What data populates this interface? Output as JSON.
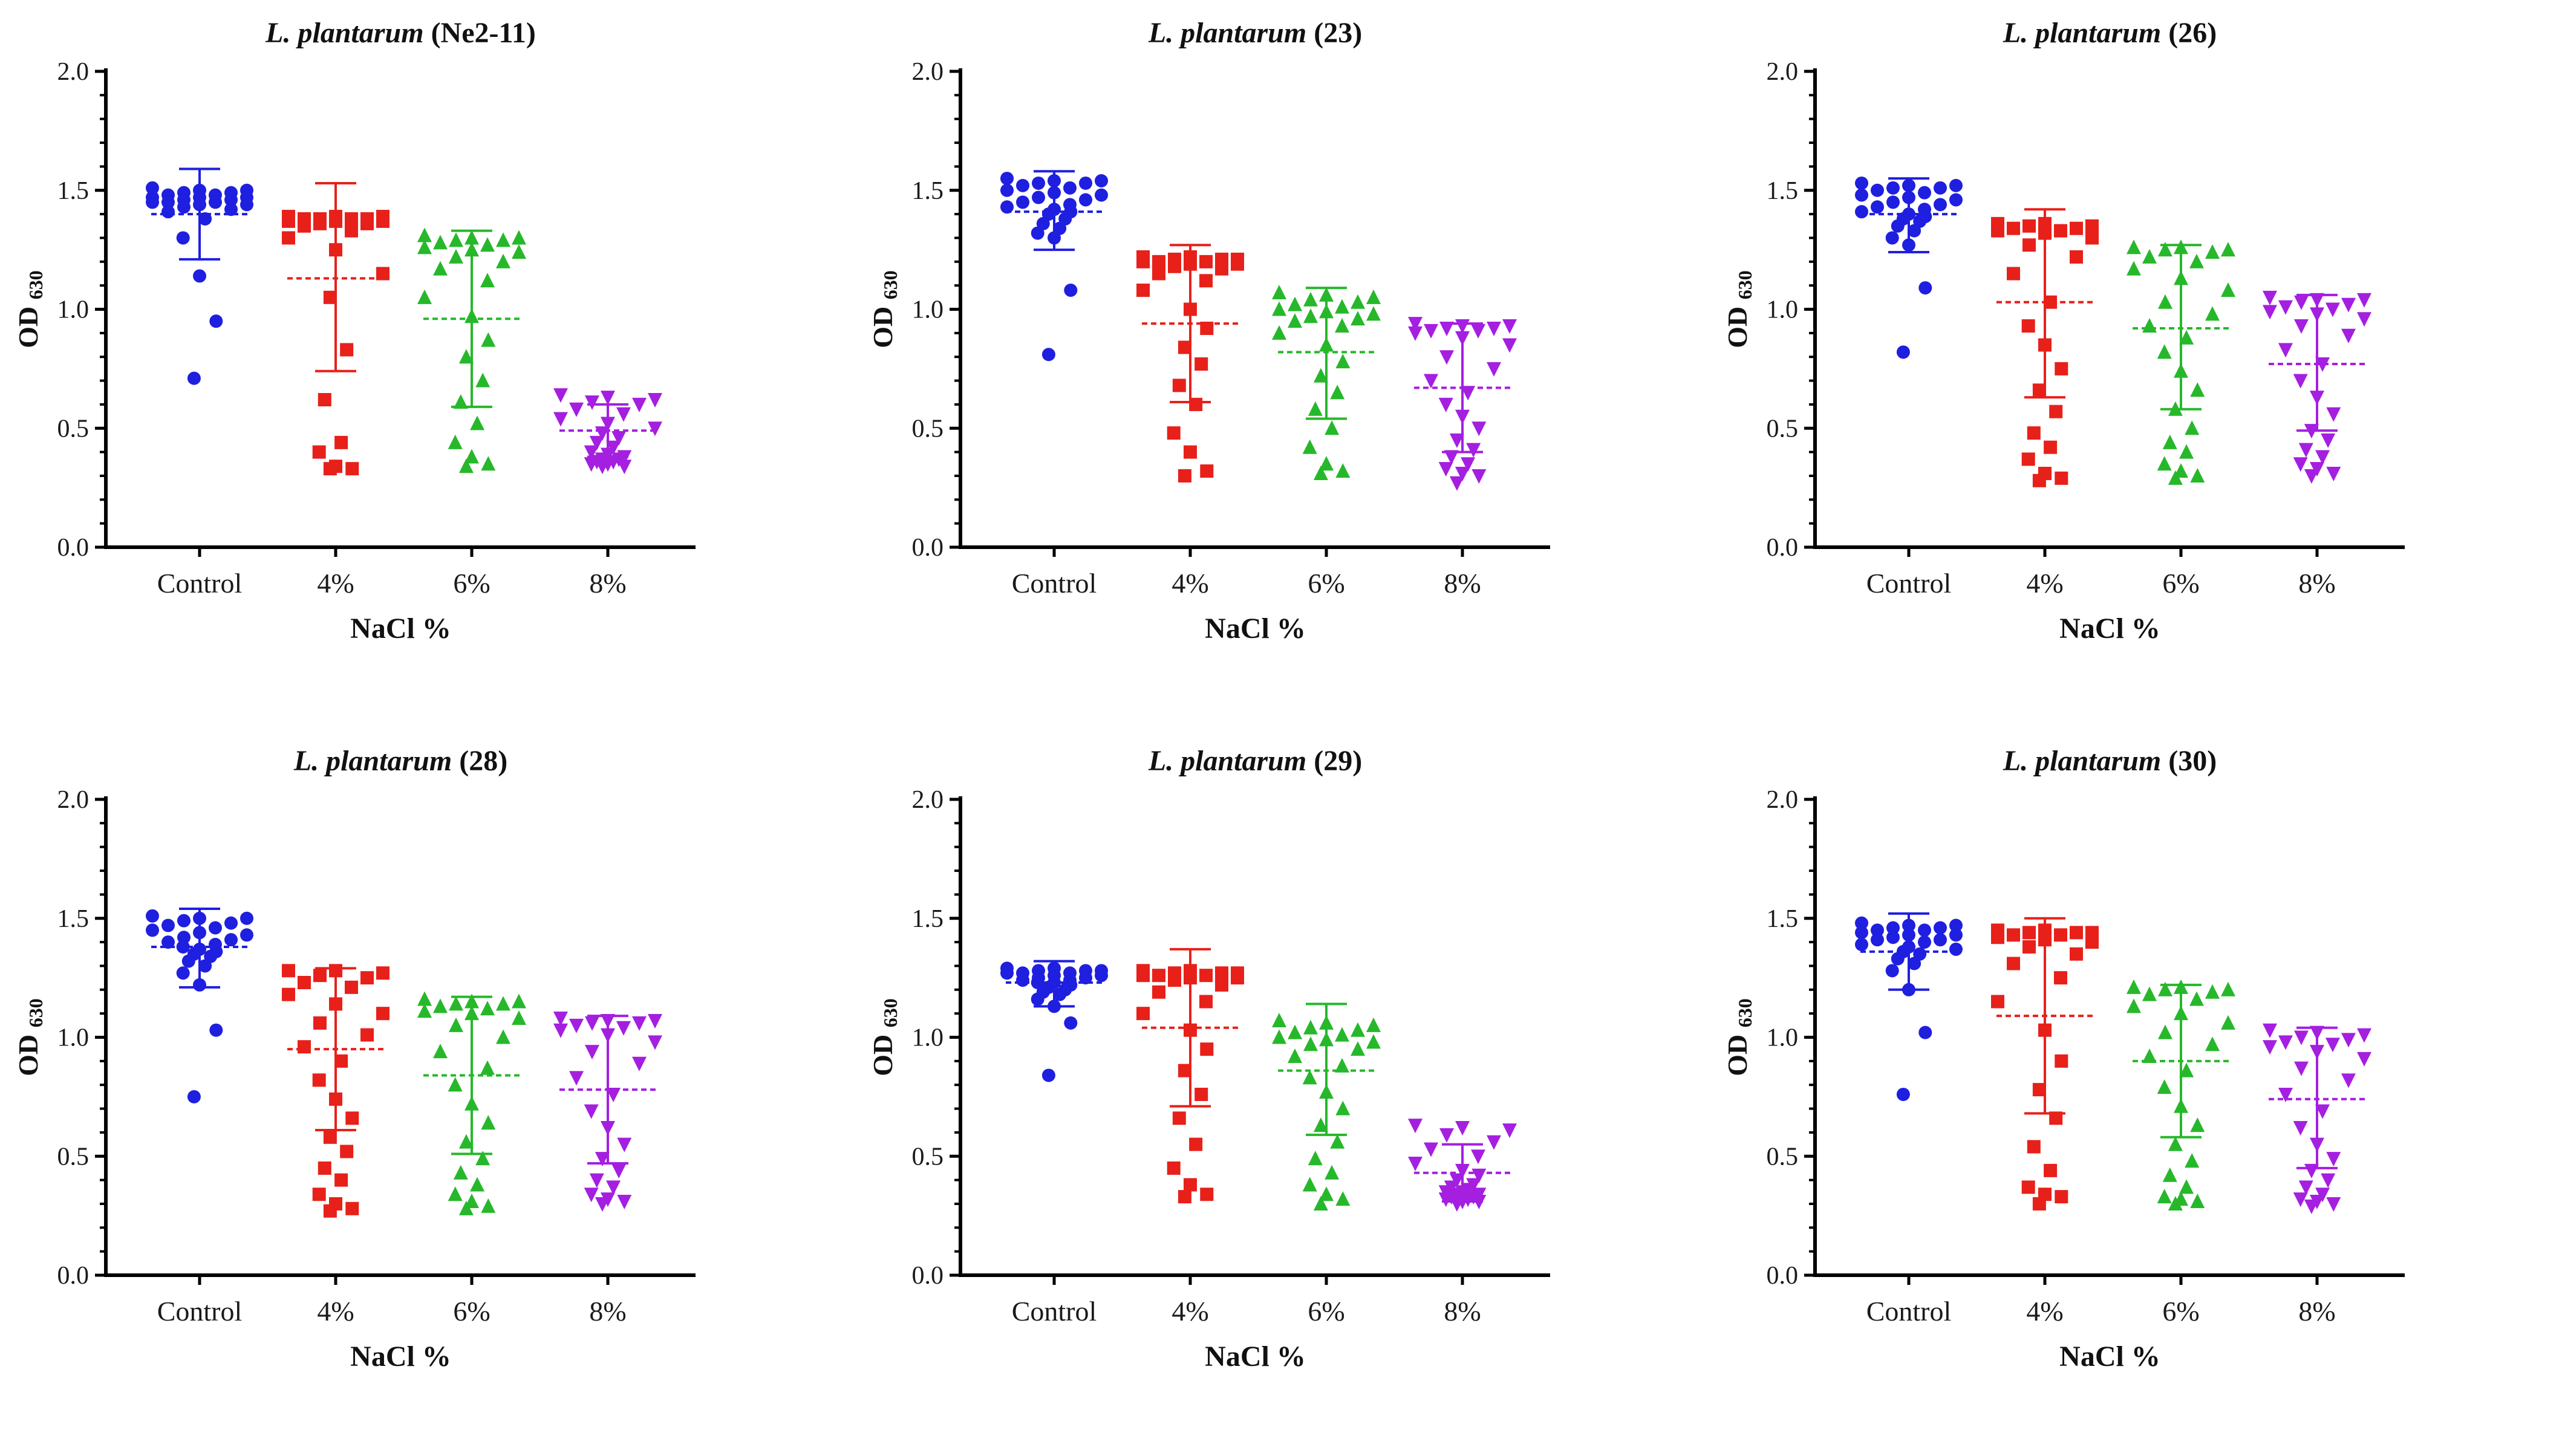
{
  "chart_data": [
    {
      "type": "scatter",
      "title_species": "L. plantarum",
      "title_strain": "(Ne2-11)",
      "xlabel": "NaCl %",
      "ylabel_main": "OD",
      "ylabel_sub": "630",
      "ylim": [
        0.0,
        2.0
      ],
      "yticks": [
        "0.0",
        "0.5",
        "1.0",
        "1.5",
        "2.0"
      ],
      "ytick_values": [
        0,
        0.5,
        1.0,
        1.5,
        2.0
      ],
      "categories": [
        "Control",
        "4%",
        "6%",
        "8%"
      ],
      "series": [
        {
          "name": "Control",
          "color": "#1f1fe0",
          "marker": "circle",
          "mean": 1.4,
          "sd_low": 1.21,
          "sd_high": 1.59,
          "points": [
            1.51,
            1.5,
            1.5,
            1.49,
            1.49,
            1.48,
            1.48,
            1.47,
            1.47,
            1.47,
            1.46,
            1.46,
            1.45,
            1.45,
            1.45,
            1.44,
            1.44,
            1.43,
            1.42,
            1.41,
            1.38,
            1.3,
            1.14,
            0.95,
            0.71
          ]
        },
        {
          "name": "4%",
          "color": "#e8201a",
          "marker": "square",
          "mean": 1.13,
          "sd_low": 0.74,
          "sd_high": 1.53,
          "points": [
            1.39,
            1.39,
            1.39,
            1.38,
            1.38,
            1.38,
            1.38,
            1.37,
            1.37,
            1.37,
            1.36,
            1.36,
            1.35,
            1.33,
            1.3,
            1.25,
            1.15,
            1.05,
            0.83,
            0.62,
            0.44,
            0.4,
            0.34,
            0.33,
            0.33
          ]
        },
        {
          "name": "6%",
          "color": "#26b82a",
          "marker": "triangle-up",
          "mean": 0.96,
          "sd_low": 0.59,
          "sd_high": 1.33,
          "points": [
            1.31,
            1.3,
            1.3,
            1.29,
            1.29,
            1.28,
            1.27,
            1.26,
            1.25,
            1.24,
            1.22,
            1.2,
            1.17,
            1.12,
            1.05,
            0.97,
            0.87,
            0.8,
            0.7,
            0.61,
            0.52,
            0.44,
            0.38,
            0.35,
            0.34
          ]
        },
        {
          "name": "8%",
          "color": "#a41fe0",
          "marker": "triangle-down",
          "mean": 0.49,
          "sd_low": 0.38,
          "sd_high": 0.6,
          "points": [
            0.64,
            0.63,
            0.62,
            0.61,
            0.6,
            0.58,
            0.56,
            0.54,
            0.52,
            0.5,
            0.48,
            0.46,
            0.44,
            0.42,
            0.4,
            0.39,
            0.38,
            0.37,
            0.37,
            0.36,
            0.36,
            0.35,
            0.35,
            0.34,
            0.34
          ]
        }
      ]
    },
    {
      "type": "scatter",
      "title_species": "L. plantarum",
      "title_strain": "(23)",
      "xlabel": "NaCl %",
      "ylabel_main": "OD",
      "ylabel_sub": "630",
      "ylim": [
        0.0,
        2.0
      ],
      "yticks": [
        "0.0",
        "0.5",
        "1.0",
        "1.5",
        "2.0"
      ],
      "ytick_values": [
        0,
        0.5,
        1.0,
        1.5,
        2.0
      ],
      "categories": [
        "Control",
        "4%",
        "6%",
        "8%"
      ],
      "series": [
        {
          "name": "Control",
          "color": "#1f1fe0",
          "marker": "circle",
          "mean": 1.41,
          "sd_low": 1.25,
          "sd_high": 1.58,
          "points": [
            1.55,
            1.54,
            1.54,
            1.53,
            1.53,
            1.52,
            1.51,
            1.5,
            1.49,
            1.48,
            1.47,
            1.46,
            1.45,
            1.44,
            1.43,
            1.42,
            1.41,
            1.4,
            1.38,
            1.36,
            1.34,
            1.32,
            1.3,
            1.08,
            0.81
          ]
        },
        {
          "name": "4%",
          "color": "#e8201a",
          "marker": "square",
          "mean": 0.94,
          "sd_low": 0.61,
          "sd_high": 1.27,
          "points": [
            1.22,
            1.22,
            1.21,
            1.21,
            1.21,
            1.2,
            1.2,
            1.2,
            1.19,
            1.19,
            1.18,
            1.17,
            1.15,
            1.12,
            1.08,
            1.0,
            0.92,
            0.84,
            0.77,
            0.68,
            0.6,
            0.48,
            0.4,
            0.32,
            0.3
          ]
        },
        {
          "name": "6%",
          "color": "#26b82a",
          "marker": "triangle-up",
          "mean": 0.82,
          "sd_low": 0.54,
          "sd_high": 1.09,
          "points": [
            1.07,
            1.06,
            1.05,
            1.04,
            1.03,
            1.02,
            1.01,
            1.0,
            0.99,
            0.98,
            0.97,
            0.96,
            0.95,
            0.93,
            0.9,
            0.85,
            0.78,
            0.72,
            0.65,
            0.58,
            0.5,
            0.42,
            0.35,
            0.32,
            0.31
          ]
        },
        {
          "name": "8%",
          "color": "#a41fe0",
          "marker": "triangle-down",
          "mean": 0.67,
          "sd_low": 0.4,
          "sd_high": 0.94,
          "points": [
            0.94,
            0.93,
            0.93,
            0.92,
            0.92,
            0.91,
            0.91,
            0.9,
            0.88,
            0.85,
            0.8,
            0.75,
            0.7,
            0.65,
            0.6,
            0.55,
            0.5,
            0.45,
            0.41,
            0.38,
            0.35,
            0.33,
            0.31,
            0.3,
            0.27
          ]
        }
      ]
    },
    {
      "type": "scatter",
      "title_species": "L. plantarum",
      "title_strain": "(26)",
      "xlabel": "NaCl %",
      "ylabel_main": "OD",
      "ylabel_sub": "630",
      "ylim": [
        0.0,
        2.0
      ],
      "yticks": [
        "0.0",
        "0.5",
        "1.0",
        "1.5",
        "2.0"
      ],
      "ytick_values": [
        0,
        0.5,
        1.0,
        1.5,
        2.0
      ],
      "categories": [
        "Control",
        "4%",
        "6%",
        "8%"
      ],
      "series": [
        {
          "name": "Control",
          "color": "#1f1fe0",
          "marker": "circle",
          "mean": 1.4,
          "sd_low": 1.24,
          "sd_high": 1.55,
          "points": [
            1.53,
            1.52,
            1.52,
            1.51,
            1.51,
            1.5,
            1.49,
            1.48,
            1.47,
            1.46,
            1.45,
            1.44,
            1.43,
            1.42,
            1.41,
            1.4,
            1.39,
            1.38,
            1.37,
            1.35,
            1.33,
            1.3,
            1.27,
            1.09,
            0.82
          ]
        },
        {
          "name": "4%",
          "color": "#e8201a",
          "marker": "square",
          "mean": 1.03,
          "sd_low": 0.63,
          "sd_high": 1.42,
          "points": [
            1.36,
            1.36,
            1.35,
            1.35,
            1.34,
            1.34,
            1.33,
            1.33,
            1.32,
            1.3,
            1.27,
            1.22,
            1.15,
            1.03,
            0.93,
            0.85,
            0.75,
            0.66,
            0.57,
            0.48,
            0.42,
            0.37,
            0.31,
            0.29,
            0.28
          ]
        },
        {
          "name": "6%",
          "color": "#26b82a",
          "marker": "triangle-up",
          "mean": 0.92,
          "sd_low": 0.58,
          "sd_high": 1.27,
          "points": [
            1.26,
            1.26,
            1.25,
            1.25,
            1.24,
            1.22,
            1.2,
            1.17,
            1.13,
            1.08,
            1.03,
            0.98,
            0.93,
            0.88,
            0.82,
            0.74,
            0.66,
            0.58,
            0.5,
            0.44,
            0.4,
            0.35,
            0.32,
            0.3,
            0.29
          ]
        },
        {
          "name": "8%",
          "color": "#a41fe0",
          "marker": "triangle-down",
          "mean": 0.77,
          "sd_low": 0.49,
          "sd_high": 1.06,
          "points": [
            1.05,
            1.04,
            1.04,
            1.03,
            1.02,
            1.01,
            1.0,
            0.99,
            0.98,
            0.96,
            0.93,
            0.89,
            0.83,
            0.77,
            0.7,
            0.63,
            0.56,
            0.49,
            0.45,
            0.41,
            0.38,
            0.35,
            0.33,
            0.31,
            0.3
          ]
        }
      ]
    },
    {
      "type": "scatter",
      "title_species": "L. plantarum",
      "title_strain": "(28)",
      "xlabel": "NaCl %",
      "ylabel_main": "OD",
      "ylabel_sub": "630",
      "ylim": [
        0.0,
        2.0
      ],
      "yticks": [
        "0.0",
        "0.5",
        "1.0",
        "1.5",
        "2.0"
      ],
      "ytick_values": [
        0,
        0.5,
        1.0,
        1.5,
        2.0
      ],
      "categories": [
        "Control",
        "4%",
        "6%",
        "8%"
      ],
      "series": [
        {
          "name": "Control",
          "color": "#1f1fe0",
          "marker": "circle",
          "mean": 1.38,
          "sd_low": 1.21,
          "sd_high": 1.54,
          "points": [
            1.51,
            1.5,
            1.5,
            1.49,
            1.48,
            1.47,
            1.46,
            1.45,
            1.44,
            1.43,
            1.42,
            1.41,
            1.4,
            1.39,
            1.38,
            1.37,
            1.36,
            1.35,
            1.34,
            1.32,
            1.3,
            1.27,
            1.22,
            1.03,
            0.75
          ]
        },
        {
          "name": "4%",
          "color": "#e8201a",
          "marker": "square",
          "mean": 0.95,
          "sd_low": 0.61,
          "sd_high": 1.29,
          "points": [
            1.28,
            1.28,
            1.27,
            1.26,
            1.25,
            1.23,
            1.21,
            1.18,
            1.14,
            1.1,
            1.06,
            1.01,
            0.96,
            0.9,
            0.82,
            0.74,
            0.66,
            0.58,
            0.52,
            0.45,
            0.4,
            0.34,
            0.3,
            0.28,
            0.27
          ]
        },
        {
          "name": "6%",
          "color": "#26b82a",
          "marker": "triangle-up",
          "mean": 0.84,
          "sd_low": 0.51,
          "sd_high": 1.17,
          "points": [
            1.16,
            1.15,
            1.15,
            1.14,
            1.14,
            1.13,
            1.12,
            1.11,
            1.1,
            1.08,
            1.05,
            1.0,
            0.94,
            0.87,
            0.8,
            0.72,
            0.64,
            0.56,
            0.49,
            0.43,
            0.38,
            0.34,
            0.31,
            0.29,
            0.28
          ]
        },
        {
          "name": "8%",
          "color": "#a41fe0",
          "marker": "triangle-down",
          "mean": 0.78,
          "sd_low": 0.47,
          "sd_high": 1.09,
          "points": [
            1.08,
            1.07,
            1.07,
            1.06,
            1.06,
            1.05,
            1.04,
            1.03,
            1.01,
            0.98,
            0.94,
            0.89,
            0.83,
            0.76,
            0.69,
            0.62,
            0.55,
            0.49,
            0.44,
            0.4,
            0.37,
            0.34,
            0.32,
            0.31,
            0.3
          ]
        }
      ]
    },
    {
      "type": "scatter",
      "title_species": "L. plantarum",
      "title_strain": "(29)",
      "xlabel": "NaCl %",
      "ylabel_main": "OD",
      "ylabel_sub": "630",
      "ylim": [
        0.0,
        2.0
      ],
      "yticks": [
        "0.0",
        "0.5",
        "1.0",
        "1.5",
        "2.0"
      ],
      "ytick_values": [
        0,
        0.5,
        1.0,
        1.5,
        2.0
      ],
      "categories": [
        "Control",
        "4%",
        "6%",
        "8%"
      ],
      "series": [
        {
          "name": "Control",
          "color": "#1f1fe0",
          "marker": "circle",
          "mean": 1.23,
          "sd_low": 1.13,
          "sd_high": 1.32,
          "points": [
            1.29,
            1.29,
            1.28,
            1.28,
            1.28,
            1.27,
            1.27,
            1.27,
            1.26,
            1.26,
            1.25,
            1.25,
            1.24,
            1.24,
            1.23,
            1.23,
            1.22,
            1.21,
            1.2,
            1.19,
            1.18,
            1.16,
            1.13,
            1.06,
            0.84
          ]
        },
        {
          "name": "4%",
          "color": "#e8201a",
          "marker": "square",
          "mean": 1.04,
          "sd_low": 0.71,
          "sd_high": 1.37,
          "points": [
            1.28,
            1.28,
            1.27,
            1.27,
            1.27,
            1.26,
            1.26,
            1.26,
            1.25,
            1.25,
            1.24,
            1.22,
            1.19,
            1.15,
            1.1,
            1.03,
            0.95,
            0.86,
            0.76,
            0.66,
            0.55,
            0.45,
            0.38,
            0.34,
            0.33
          ]
        },
        {
          "name": "6%",
          "color": "#26b82a",
          "marker": "triangle-up",
          "mean": 0.86,
          "sd_low": 0.59,
          "sd_high": 1.14,
          "points": [
            1.07,
            1.06,
            1.05,
            1.04,
            1.03,
            1.02,
            1.01,
            1.0,
            0.99,
            0.98,
            0.97,
            0.95,
            0.92,
            0.88,
            0.83,
            0.77,
            0.7,
            0.63,
            0.56,
            0.49,
            0.43,
            0.38,
            0.34,
            0.32,
            0.3
          ]
        },
        {
          "name": "8%",
          "color": "#a41fe0",
          "marker": "triangle-down",
          "mean": 0.43,
          "sd_low": 0.31,
          "sd_high": 0.55,
          "points": [
            0.63,
            0.62,
            0.61,
            0.59,
            0.56,
            0.53,
            0.5,
            0.47,
            0.44,
            0.42,
            0.4,
            0.38,
            0.37,
            0.36,
            0.35,
            0.35,
            0.34,
            0.34,
            0.33,
            0.33,
            0.32,
            0.32,
            0.31,
            0.31,
            0.3
          ]
        }
      ]
    },
    {
      "type": "scatter",
      "title_species": "L. plantarum",
      "title_strain": "(30)",
      "xlabel": "NaCl %",
      "ylabel_main": "OD",
      "ylabel_sub": "630",
      "ylim": [
        0.0,
        2.0
      ],
      "yticks": [
        "0.0",
        "0.5",
        "1.0",
        "1.5",
        "2.0"
      ],
      "ytick_values": [
        0,
        0.5,
        1.0,
        1.5,
        2.0
      ],
      "categories": [
        "Control",
        "4%",
        "6%",
        "8%"
      ],
      "series": [
        {
          "name": "Control",
          "color": "#1f1fe0",
          "marker": "circle",
          "mean": 1.36,
          "sd_low": 1.2,
          "sd_high": 1.52,
          "points": [
            1.48,
            1.47,
            1.47,
            1.46,
            1.46,
            1.45,
            1.45,
            1.44,
            1.43,
            1.43,
            1.42,
            1.41,
            1.41,
            1.4,
            1.39,
            1.38,
            1.37,
            1.36,
            1.35,
            1.33,
            1.31,
            1.28,
            1.2,
            1.02,
            0.76
          ]
        },
        {
          "name": "4%",
          "color": "#e8201a",
          "marker": "square",
          "mean": 1.09,
          "sd_low": 0.68,
          "sd_high": 1.5,
          "points": [
            1.45,
            1.45,
            1.44,
            1.44,
            1.44,
            1.43,
            1.43,
            1.42,
            1.41,
            1.4,
            1.38,
            1.35,
            1.31,
            1.25,
            1.15,
            1.03,
            0.9,
            0.78,
            0.66,
            0.54,
            0.44,
            0.37,
            0.34,
            0.33,
            0.3
          ]
        },
        {
          "name": "6%",
          "color": "#26b82a",
          "marker": "triangle-up",
          "mean": 0.9,
          "sd_low": 0.58,
          "sd_high": 1.22,
          "points": [
            1.21,
            1.21,
            1.2,
            1.2,
            1.19,
            1.18,
            1.16,
            1.13,
            1.1,
            1.06,
            1.02,
            0.97,
            0.92,
            0.86,
            0.79,
            0.71,
            0.63,
            0.55,
            0.48,
            0.42,
            0.37,
            0.33,
            0.32,
            0.31,
            0.3
          ]
        },
        {
          "name": "8%",
          "color": "#a41fe0",
          "marker": "triangle-down",
          "mean": 0.74,
          "sd_low": 0.45,
          "sd_high": 1.04,
          "points": [
            1.03,
            1.02,
            1.01,
            1.0,
            0.99,
            0.98,
            0.97,
            0.96,
            0.94,
            0.91,
            0.87,
            0.82,
            0.76,
            0.69,
            0.62,
            0.55,
            0.49,
            0.44,
            0.4,
            0.37,
            0.34,
            0.32,
            0.31,
            0.3,
            0.29
          ]
        }
      ]
    }
  ]
}
